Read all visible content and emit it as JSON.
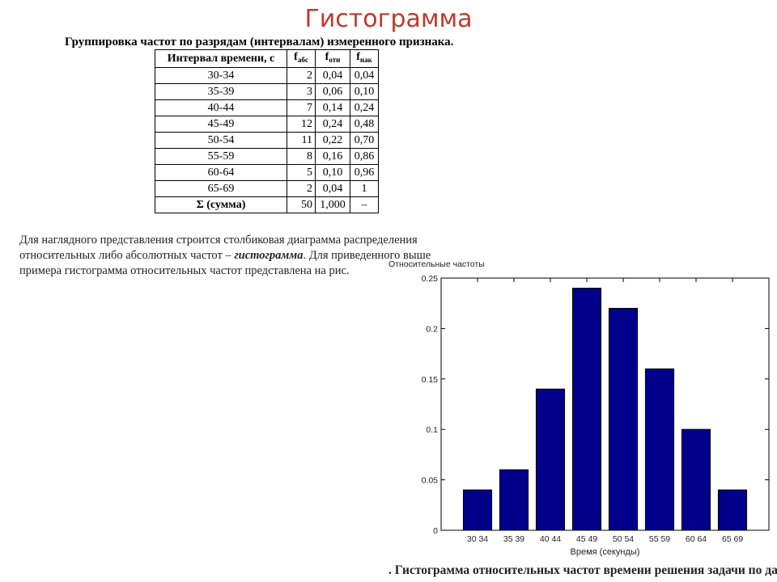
{
  "slide": {
    "title": "Гистограмма",
    "subtitle": "Группировка частот по разрядам (интервалам) измеренного признака.",
    "paragraph_line1": "Для наглядного представления строится столбиковая диаграмма распределения",
    "paragraph_line2_a": "относительных либо абсолютных частот – ",
    "paragraph_line2_em": "гистограмма",
    "paragraph_line2_b": ". Для приведенного выше",
    "paragraph_line3": "примера гистограмма относительных частот представлена на рис.",
    "caption": ". Гистограмма относительных частот времени решения задачи по данны"
  },
  "table": {
    "header": {
      "interval": "Интервал времени, с",
      "f": "f",
      "abs_sub": "абс",
      "rel_sub": "отн",
      "cum_sub": "нак"
    },
    "rows": [
      {
        "interval": "30-34",
        "abs": "2",
        "rel": "0,04",
        "cum": "0,04"
      },
      {
        "interval": "35-39",
        "abs": "3",
        "rel": "0,06",
        "cum": "0,10"
      },
      {
        "interval": "40-44",
        "abs": "7",
        "rel": "0,14",
        "cum": "0,24"
      },
      {
        "interval": "45-49",
        "abs": "12",
        "rel": "0,24",
        "cum": "0,48"
      },
      {
        "interval": "50-54",
        "abs": "11",
        "rel": "0,22",
        "cum": "0,70"
      },
      {
        "interval": "55-59",
        "abs": "8",
        "rel": "0,16",
        "cum": "0,86"
      },
      {
        "interval": "60-64",
        "abs": "5",
        "rel": "0,10",
        "cum": "0,96"
      },
      {
        "interval": "65-69",
        "abs": "2",
        "rel": "0,04",
        "cum": "1"
      }
    ],
    "total": {
      "label": "Σ (сумма)",
      "abs": "50",
      "rel": "1,000",
      "cum": "–"
    }
  },
  "chart_data": {
    "type": "bar",
    "title": "",
    "ylabel": "Относительные частоты",
    "xlabel": "Время (секунды)",
    "categories": [
      "30 34",
      "35 39",
      "40 44",
      "45 49",
      "50 54",
      "55 59",
      "60 64",
      "65 69"
    ],
    "values": [
      0.04,
      0.06,
      0.14,
      0.24,
      0.22,
      0.16,
      0.1,
      0.04
    ],
    "ylim": [
      0,
      0.25
    ],
    "yticks": [
      0,
      0.05,
      0.1,
      0.15,
      0.2,
      0.25
    ],
    "ytick_labels": [
      "0",
      "0.05",
      "0.1",
      "0.15",
      "0.2",
      "0.25"
    ],
    "bar_color": "#00008b",
    "grid": false
  }
}
